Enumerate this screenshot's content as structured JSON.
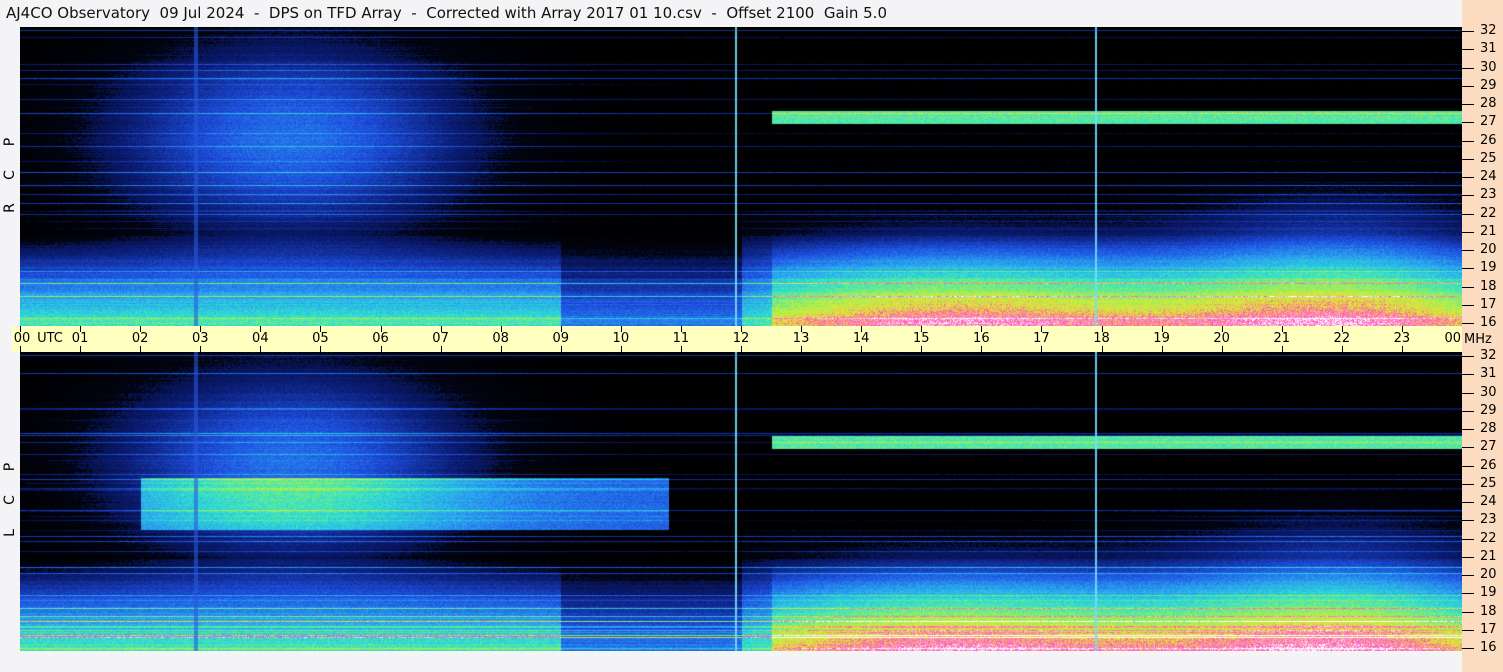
{
  "title": "AJ4CO Observatory  09 Jul 2024  -  DPS on TFD Array  -  Corrected with Array 2017 01 10.csv  -  Offset 2100  Gain 5.0",
  "chart_data": {
    "type": "heatmap",
    "panels": [
      {
        "name": "R C P",
        "letters": [
          "R",
          "C",
          "P"
        ]
      },
      {
        "name": "L C P",
        "letters": [
          "L",
          "C",
          "P"
        ]
      }
    ],
    "x_axis": {
      "unit_label": "UTC",
      "range": [
        0,
        24
      ],
      "ticks": [
        "00",
        "01",
        "02",
        "03",
        "04",
        "05",
        "06",
        "07",
        "08",
        "09",
        "10",
        "11",
        "12",
        "13",
        "14",
        "15",
        "16",
        "17",
        "18",
        "19",
        "20",
        "21",
        "22",
        "23",
        "00"
      ]
    },
    "y_axis": {
      "unit_label": "MHz",
      "range": [
        16,
        32
      ],
      "ticks": [
        "32",
        "31",
        "30",
        "29",
        "28",
        "27",
        "26",
        "25",
        "24",
        "23",
        "22",
        "21",
        "20",
        "19",
        "18",
        "17",
        "16"
      ]
    },
    "colormap": [
      "#000000",
      "#0a1a6e",
      "#1e50e0",
      "#2aa0f0",
      "#30e0d0",
      "#90f060",
      "#e8e830",
      "#ff50c0",
      "#ffffff"
    ],
    "vertical_markers_utc": [
      11.9,
      17.9
    ]
  }
}
